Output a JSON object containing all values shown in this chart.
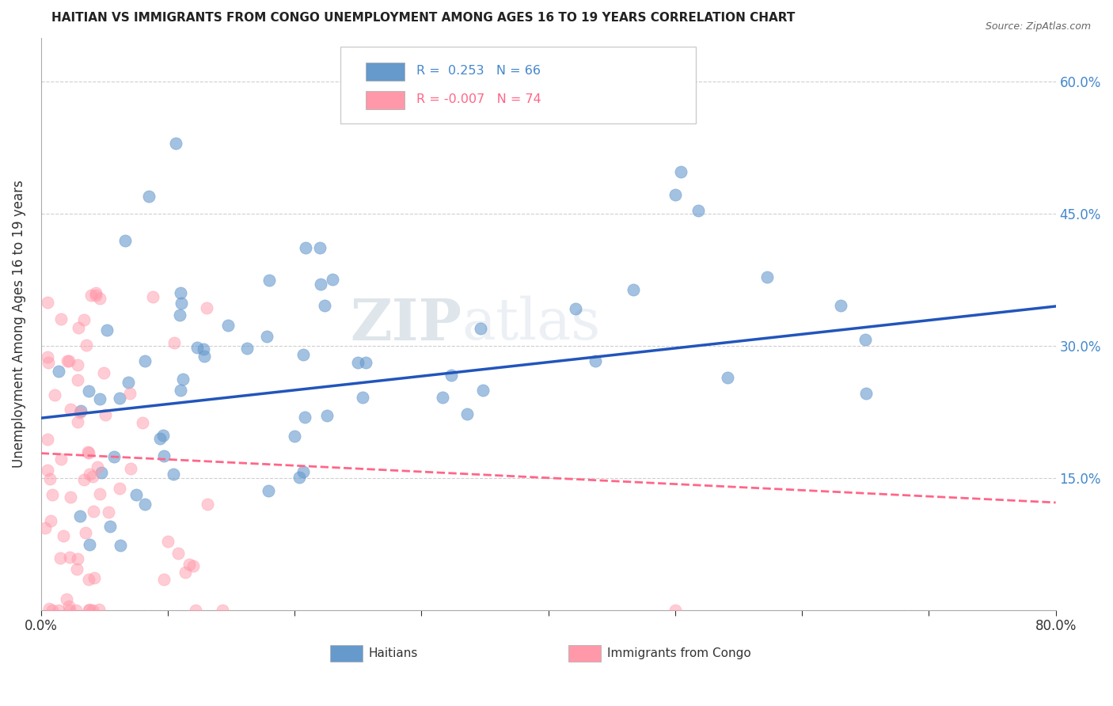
{
  "title": "HAITIAN VS IMMIGRANTS FROM CONGO UNEMPLOYMENT AMONG AGES 16 TO 19 YEARS CORRELATION CHART",
  "source": "Source: ZipAtlas.com",
  "ylabel": "Unemployment Among Ages 16 to 19 years",
  "watermark_zip": "ZIP",
  "watermark_atlas": "atlas",
  "xmin": 0.0,
  "xmax": 0.8,
  "ymin": 0.0,
  "ymax": 0.65,
  "ytick_positions": [
    0.0,
    0.15,
    0.3,
    0.45,
    0.6
  ],
  "ytick_labels_right": [
    "",
    "15.0%",
    "30.0%",
    "45.0%",
    "60.0%"
  ],
  "xtick_positions": [
    0.0,
    0.1,
    0.2,
    0.3,
    0.4,
    0.5,
    0.6,
    0.7,
    0.8
  ],
  "xtick_labels": [
    "0.0%",
    "",
    "",
    "",
    "",
    "",
    "",
    "",
    "80.0%"
  ],
  "legend_blue_label": "Haitians",
  "legend_pink_label": "Immigrants from Congo",
  "R_blue": 0.253,
  "N_blue": 66,
  "R_pink": -0.007,
  "N_pink": 74,
  "blue_color": "#6699CC",
  "pink_color": "#FF99AA",
  "blue_line_color": "#2255BB",
  "pink_line_color": "#FF6688",
  "background_color": "#FFFFFF",
  "blue_line_y_start": 0.218,
  "blue_line_y_end": 0.345,
  "pink_line_y_start": 0.178,
  "pink_line_y_end": 0.122
}
